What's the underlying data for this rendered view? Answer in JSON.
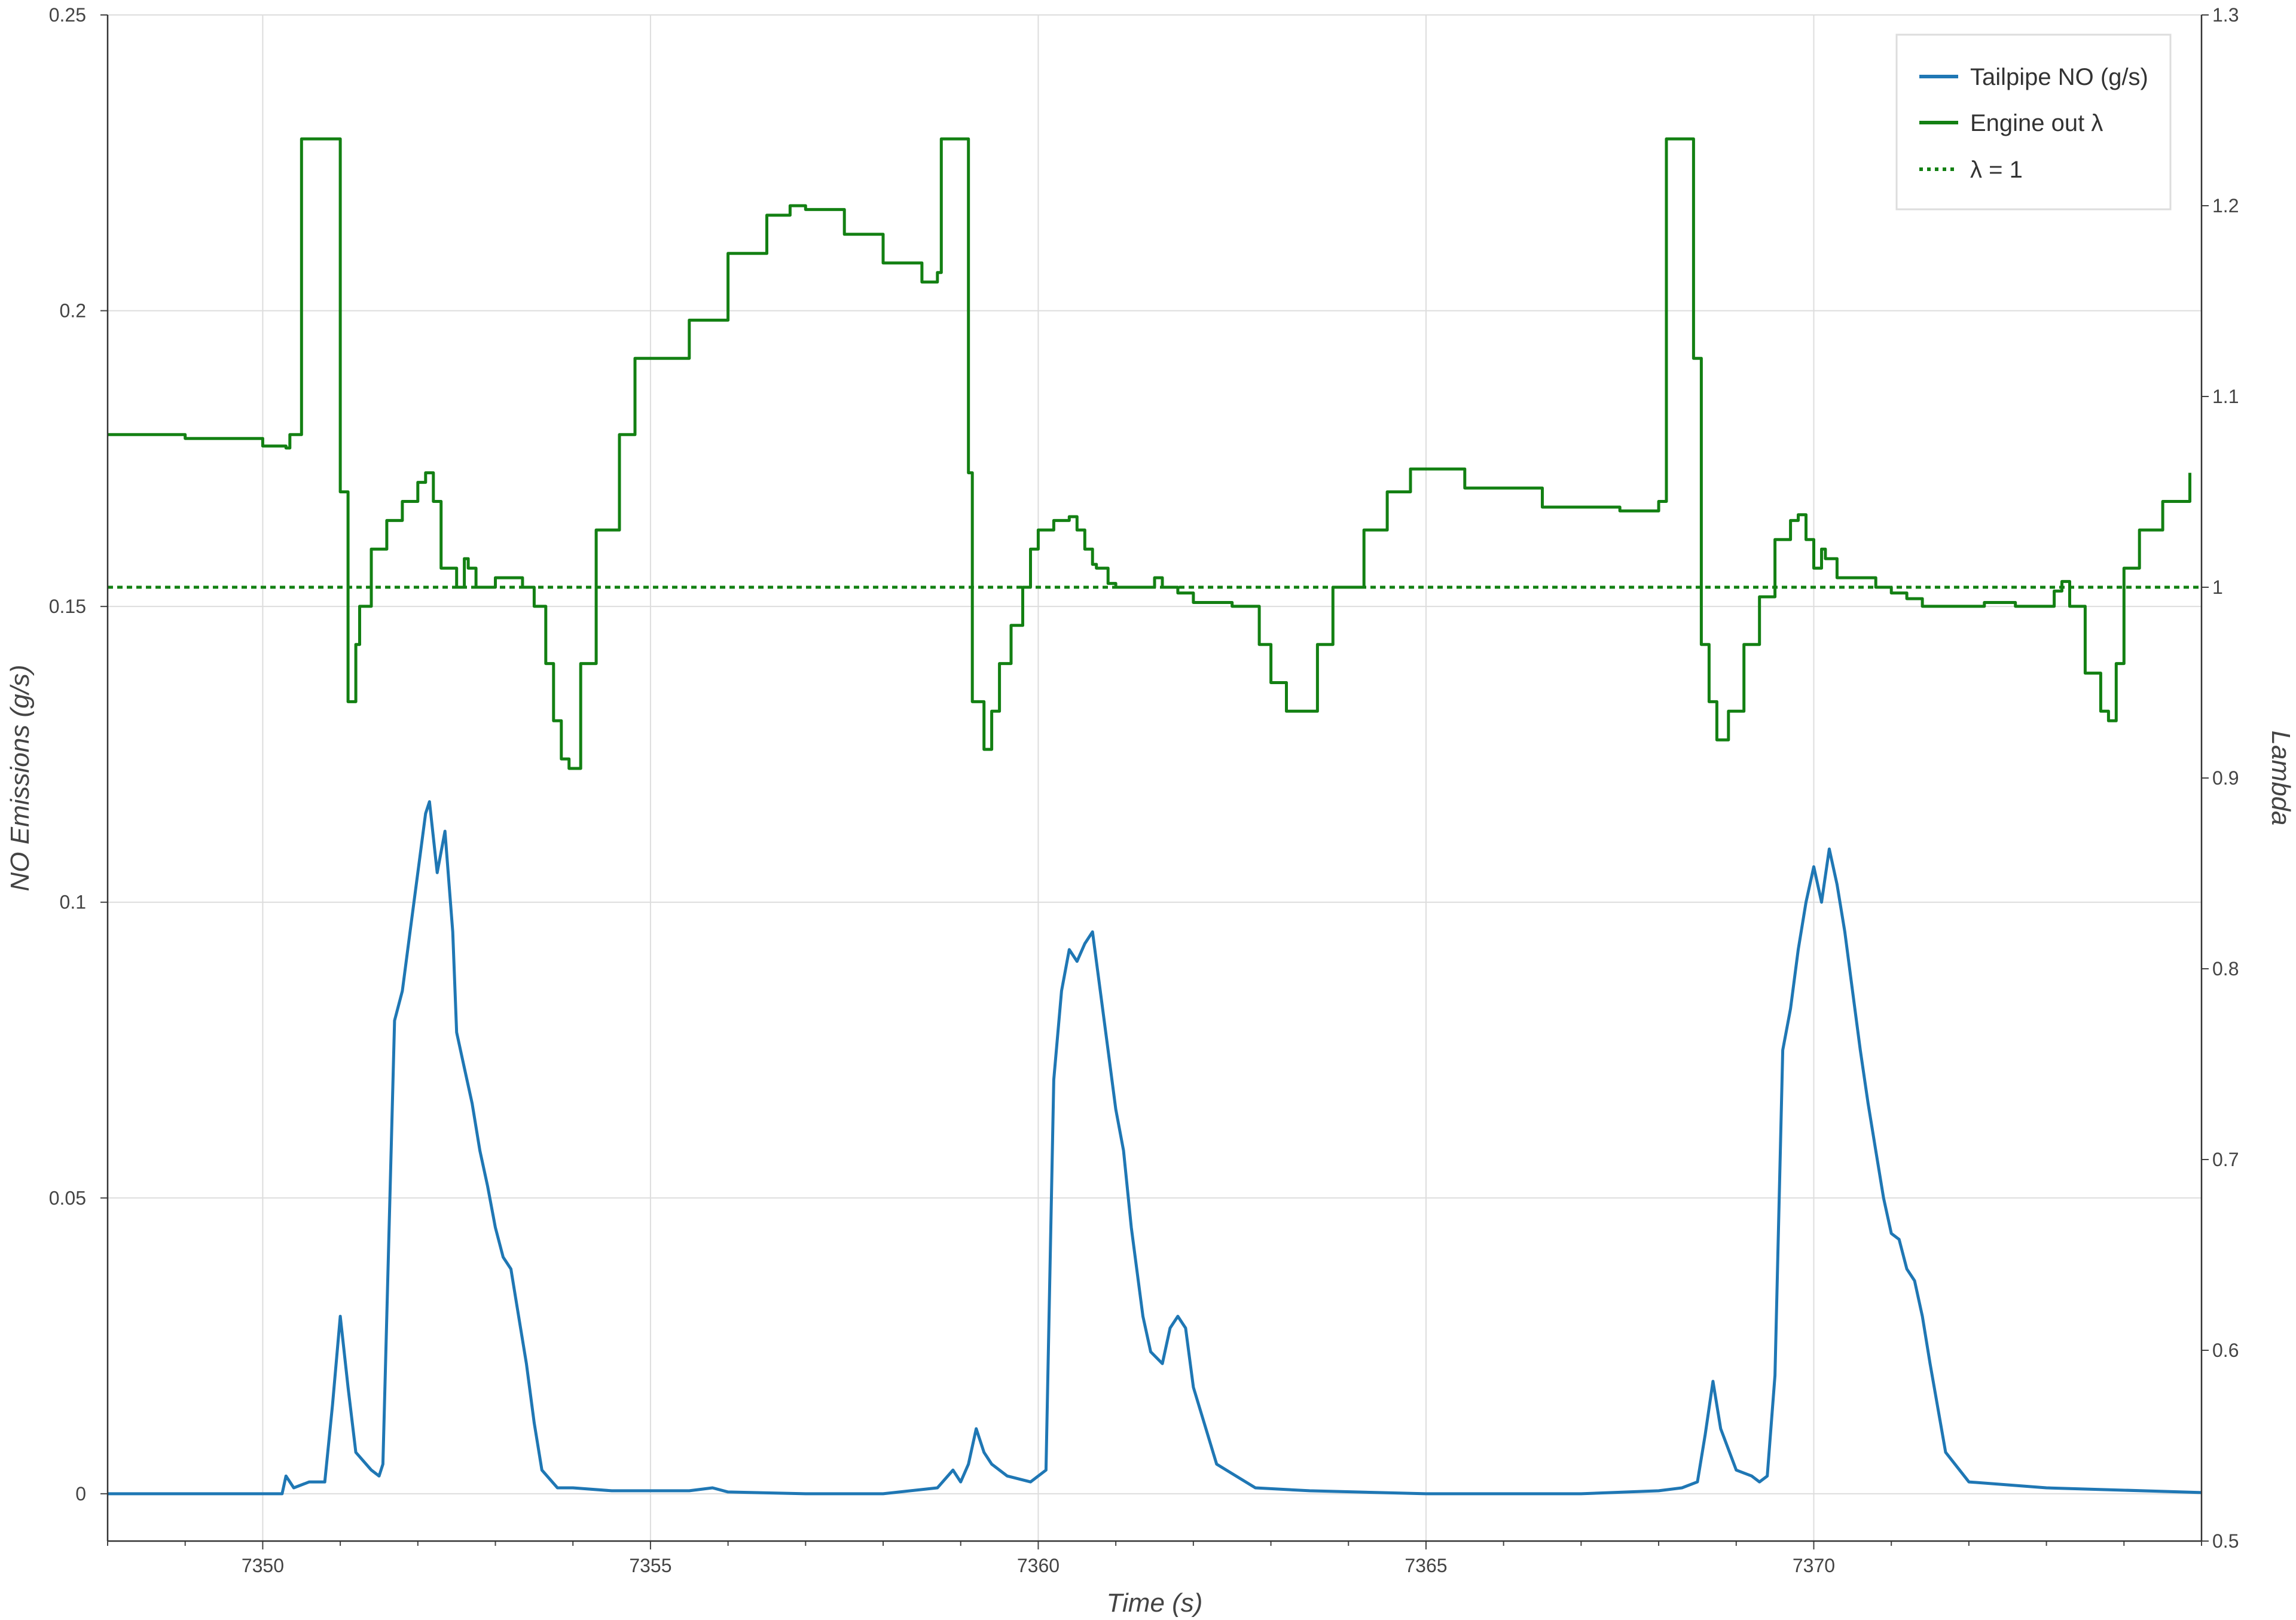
{
  "chart_data": {
    "type": "line",
    "xlabel": "Time (s)",
    "ylabel_left": "NO Emissions (g/s)",
    "ylabel_right": "Lambda",
    "xlim": [
      7348,
      7375
    ],
    "ylim_left": [
      -0.008,
      0.25
    ],
    "ylim_right": [
      0.5,
      1.3
    ],
    "x_ticks": [
      7350,
      7355,
      7360,
      7365,
      7370
    ],
    "x_tick_labels": [
      "7350",
      "7355",
      "7360",
      "7365",
      "7370"
    ],
    "y_left_ticks": [
      0,
      0.05,
      0.1,
      0.15,
      0.2,
      0.25
    ],
    "y_left_tick_labels": [
      "0",
      "0.05",
      "0.1",
      "0.15",
      "0.2",
      "0.25"
    ],
    "y_right_ticks": [
      0.5,
      0.6,
      0.7,
      0.8,
      0.9,
      1.0,
      1.1,
      1.2,
      1.3
    ],
    "y_right_tick_labels": [
      "0.5",
      "0.6",
      "0.7",
      "0.8",
      "0.9",
      "1",
      "1.1",
      "1.2",
      "1.3"
    ],
    "grid": true,
    "legend_position": "top-right",
    "colors": {
      "tailpipe": "#1f77b4",
      "lambda": "#138013",
      "reference": "#138013",
      "grid": "#dddddd"
    },
    "series": [
      {
        "name": "Tailpipe NO (g/s)",
        "axis": "left",
        "style": "solid",
        "x": [
          7348,
          7350.25,
          7350.3,
          7350.4,
          7350.6,
          7350.8,
          7350.9,
          7351.0,
          7351.1,
          7351.2,
          7351.4,
          7351.5,
          7351.55,
          7351.7,
          7351.8,
          7351.9,
          7352.0,
          7352.1,
          7352.15,
          7352.25,
          7352.35,
          7352.45,
          7352.5,
          7352.6,
          7352.7,
          7352.8,
          7352.9,
          7353.0,
          7353.1,
          7353.2,
          7353.3,
          7353.4,
          7353.5,
          7353.6,
          7353.8,
          7354.0,
          7354.5,
          7355.0,
          7355.5,
          7355.8,
          7356.0,
          7357.0,
          7358.0,
          7358.7,
          7358.9,
          7359.0,
          7359.1,
          7359.2,
          7359.3,
          7359.4,
          7359.6,
          7359.9,
          7360.1,
          7360.2,
          7360.3,
          7360.4,
          7360.5,
          7360.6,
          7360.7,
          7360.8,
          7360.9,
          7361.0,
          7361.1,
          7361.2,
          7361.35,
          7361.45,
          7361.6,
          7361.7,
          7361.8,
          7361.9,
          7362.0,
          7362.3,
          7362.8,
          7363.5,
          7365.0,
          7367.0,
          7368.0,
          7368.3,
          7368.5,
          7368.6,
          7368.7,
          7368.8,
          7369.0,
          7369.2,
          7369.3,
          7369.4,
          7369.5,
          7369.6,
          7369.7,
          7369.8,
          7369.9,
          7370.0,
          7370.1,
          7370.2,
          7370.3,
          7370.4,
          7370.5,
          7370.6,
          7370.7,
          7370.8,
          7370.9,
          7371.0,
          7371.1,
          7371.2,
          7371.3,
          7371.4,
          7371.5,
          7371.7,
          7372.0,
          7373.0,
          7375.0
        ],
        "y": [
          0,
          0,
          0.003,
          0.001,
          0.002,
          0.002,
          0.015,
          0.03,
          0.018,
          0.007,
          0.004,
          0.003,
          0.005,
          0.08,
          0.085,
          0.095,
          0.105,
          0.115,
          0.117,
          0.105,
          0.112,
          0.095,
          0.078,
          0.072,
          0.066,
          0.058,
          0.052,
          0.045,
          0.04,
          0.038,
          0.03,
          0.022,
          0.012,
          0.004,
          0.001,
          0.001,
          0.0005,
          0.0005,
          0.0005,
          0.001,
          0.0003,
          0,
          0,
          0.001,
          0.004,
          0.002,
          0.005,
          0.011,
          0.007,
          0.005,
          0.003,
          0.002,
          0.004,
          0.07,
          0.085,
          0.092,
          0.09,
          0.093,
          0.095,
          0.085,
          0.075,
          0.065,
          0.058,
          0.045,
          0.03,
          0.024,
          0.022,
          0.028,
          0.03,
          0.028,
          0.018,
          0.005,
          0.001,
          0.0005,
          0,
          0,
          0.0005,
          0.001,
          0.002,
          0.01,
          0.019,
          0.011,
          0.004,
          0.003,
          0.002,
          0.003,
          0.02,
          0.075,
          0.082,
          0.092,
          0.1,
          0.106,
          0.1,
          0.109,
          0.103,
          0.095,
          0.085,
          0.075,
          0.066,
          0.058,
          0.05,
          0.044,
          0.043,
          0.038,
          0.036,
          0.03,
          0.022,
          0.007,
          0.002,
          0.001,
          0.0002
        ]
      },
      {
        "name": "Engine out λ",
        "axis": "right",
        "style": "steps",
        "x": [
          7348,
          7349,
          7350,
          7350.3,
          7350.35,
          7350.5,
          7350.9,
          7351.0,
          7351.1,
          7351.2,
          7351.25,
          7351.4,
          7351.6,
          7351.8,
          7352.0,
          7352.1,
          7352.2,
          7352.3,
          7352.5,
          7352.6,
          7352.65,
          7352.75,
          7353.0,
          7353.2,
          7353.35,
          7353.5,
          7353.65,
          7353.75,
          7353.85,
          7353.95,
          7354.1,
          7354.3,
          7354.6,
          7354.8,
          7355.1,
          7355.5,
          7356.0,
          7356.5,
          7356.8,
          7357.0,
          7357.5,
          7358.0,
          7358.5,
          7358.7,
          7358.75,
          7359.0,
          7359.1,
          7359.15,
          7359.3,
          7359.4,
          7359.5,
          7359.65,
          7359.8,
          7359.9,
          7360.0,
          7360.2,
          7360.4,
          7360.5,
          7360.6,
          7360.7,
          7360.75,
          7360.9,
          7361.0,
          7361.2,
          7361.5,
          7361.6,
          7361.8,
          7362.0,
          7362.5,
          7362.7,
          7362.85,
          7363.0,
          7363.2,
          7363.4,
          7363.6,
          7363.8,
          7364.2,
          7364.5,
          7364.8,
          7365.5,
          7366.5,
          7367.5,
          7367.9,
          7368.0,
          7368.1,
          7368.4,
          7368.45,
          7368.55,
          7368.65,
          7368.75,
          7368.9,
          7369.1,
          7369.3,
          7369.5,
          7369.7,
          7369.8,
          7369.9,
          7370.0,
          7370.1,
          7370.15,
          7370.3,
          7370.5,
          7370.8,
          7371.0,
          7371.2,
          7371.4,
          7371.6,
          7371.9,
          7372.2,
          7372.6,
          7372.9,
          7373.1,
          7373.2,
          7373.3,
          7373.5,
          7373.7,
          7373.8,
          7373.9,
          7374.0,
          7374.2,
          7374.5,
          7374.85
        ],
        "y": [
          1.08,
          1.078,
          1.074,
          1.073,
          1.08,
          1.235,
          1.235,
          1.05,
          0.94,
          0.97,
          0.99,
          1.02,
          1.035,
          1.045,
          1.055,
          1.06,
          1.045,
          1.01,
          1.0,
          1.015,
          1.01,
          1.0,
          1.005,
          1.005,
          1.0,
          0.99,
          0.96,
          0.93,
          0.91,
          0.905,
          0.96,
          1.03,
          1.08,
          1.12,
          1.12,
          1.14,
          1.175,
          1.195,
          1.2,
          1.198,
          1.185,
          1.17,
          1.16,
          1.165,
          1.235,
          1.235,
          1.06,
          0.94,
          0.915,
          0.935,
          0.96,
          0.98,
          1.0,
          1.02,
          1.03,
          1.035,
          1.037,
          1.03,
          1.02,
          1.012,
          1.01,
          1.002,
          1.0,
          1.0,
          1.005,
          1.0,
          0.997,
          0.992,
          0.99,
          0.99,
          0.97,
          0.95,
          0.935,
          0.935,
          0.97,
          1.0,
          1.03,
          1.05,
          1.062,
          1.052,
          1.042,
          1.04,
          1.04,
          1.045,
          1.235,
          1.235,
          1.12,
          0.97,
          0.94,
          0.92,
          0.935,
          0.97,
          0.995,
          1.025,
          1.035,
          1.038,
          1.025,
          1.01,
          1.02,
          1.015,
          1.005,
          1.005,
          1.0,
          0.997,
          0.994,
          0.99,
          0.99,
          0.99,
          0.992,
          0.99,
          0.99,
          0.998,
          1.003,
          0.99,
          0.955,
          0.935,
          0.93,
          0.96,
          1.01,
          1.03,
          1.045,
          1.06
        ]
      },
      {
        "name": "λ = 1",
        "axis": "right",
        "style": "dotted",
        "x": [
          7348,
          7375
        ],
        "y": [
          1.0,
          1.0
        ]
      }
    ]
  }
}
